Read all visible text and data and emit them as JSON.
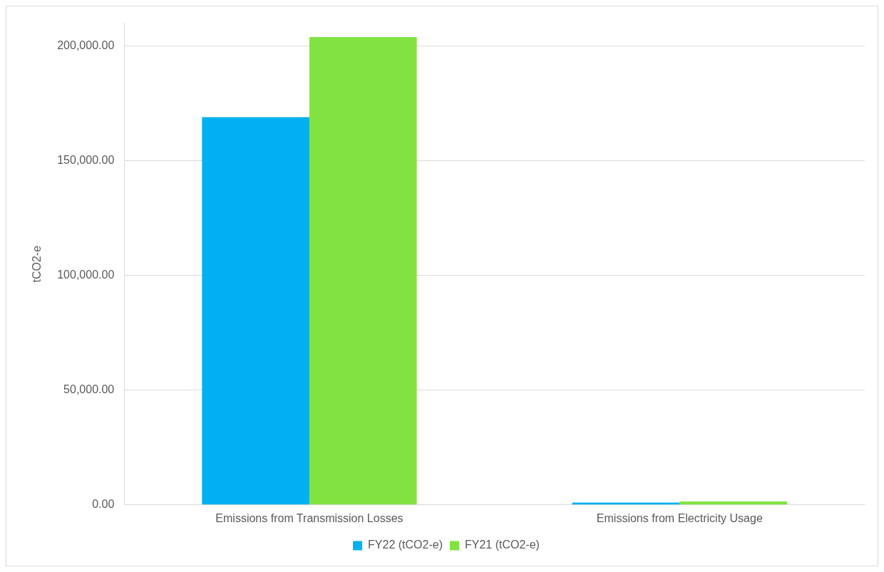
{
  "chart_data": {
    "type": "bar",
    "ylabel": "tCO2-e",
    "categories": [
      "Emissions from Transmission Losses",
      "Emissions from Electricity Usage"
    ],
    "series": [
      {
        "name": "FY22 (tCO2-e)",
        "color": "#00b0f0",
        "values": [
          169000,
          1000
        ]
      },
      {
        "name": "FY21 (tCO2-e)",
        "color": "#82e241",
        "values": [
          204000,
          1500
        ]
      }
    ],
    "ylim": [
      0,
      210000
    ],
    "yticks": [
      {
        "value": 0,
        "label": "0.00"
      },
      {
        "value": 50000,
        "label": "50,000.00"
      },
      {
        "value": 100000,
        "label": "100,000.00"
      },
      {
        "value": 150000,
        "label": "150,000.00"
      },
      {
        "value": 200000,
        "label": "200,000.00"
      }
    ],
    "grid": "y",
    "legend": "bottom"
  }
}
